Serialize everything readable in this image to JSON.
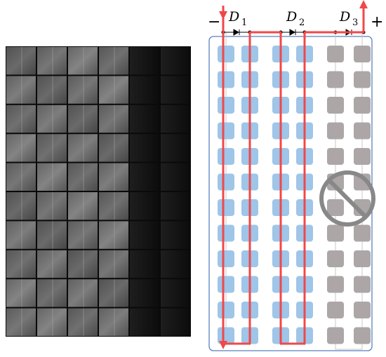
{
  "terminals": {
    "negative": "−",
    "positive": "+"
  },
  "diodes": [
    {
      "letter": "D",
      "index": "1"
    },
    {
      "letter": "D",
      "index": "2"
    },
    {
      "letter": "D",
      "index": "3"
    }
  ]
}
